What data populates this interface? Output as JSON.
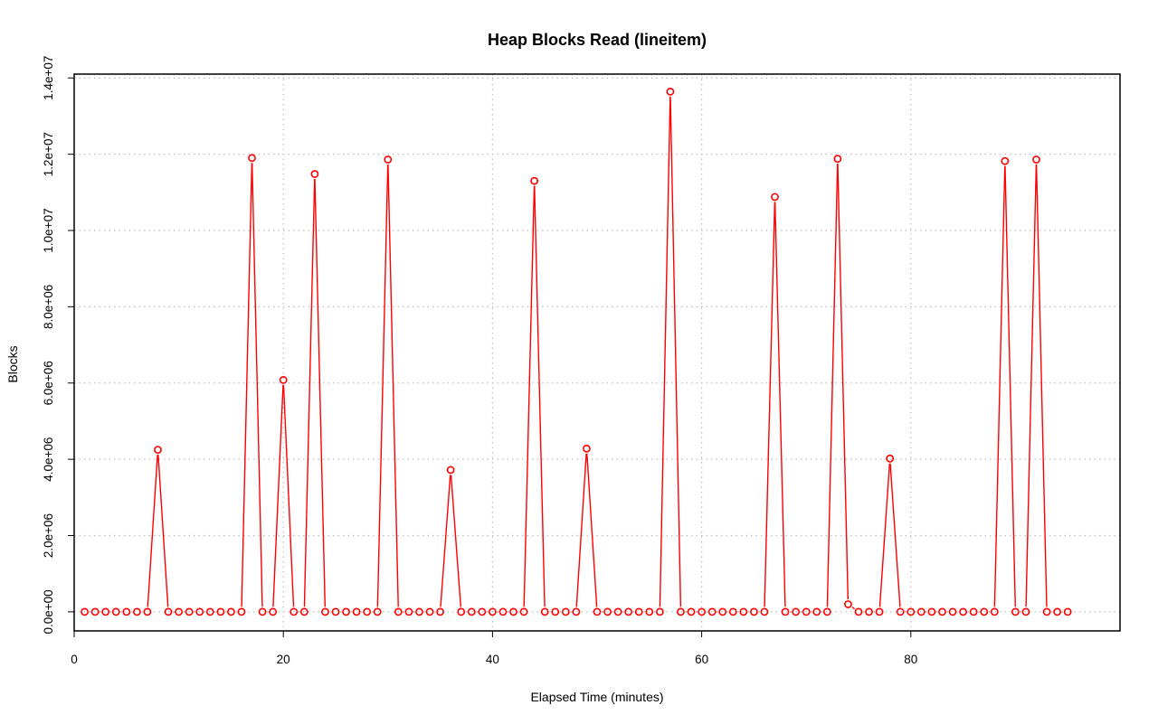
{
  "chart_data": {
    "type": "line",
    "title": "Heap Blocks Read (lineitem)",
    "xlabel": "Elapsed Time (minutes)",
    "ylabel": "Blocks",
    "xlim": [
      0,
      100
    ],
    "ylim": [
      -500000,
      14100000
    ],
    "x_ticks": [
      0,
      20,
      40,
      60,
      80
    ],
    "x_tick_labels": [
      "0",
      "20",
      "40",
      "60",
      "80"
    ],
    "y_ticks": [
      0,
      2000000,
      4000000,
      6000000,
      8000000,
      10000000,
      12000000,
      14000000
    ],
    "y_tick_labels": [
      "0.0e+00",
      "2.0e+06",
      "4.0e+06",
      "6.0e+06",
      "8.0e+06",
      "1.0e+07",
      "1.2e+07",
      "1.4e+07"
    ],
    "grid": true,
    "series": [
      {
        "color": "#ff0000",
        "marker": "open-circle",
        "x": [
          1,
          2,
          3,
          4,
          5,
          6,
          7,
          8,
          9,
          10,
          11,
          12,
          13,
          14,
          15,
          16,
          17,
          18,
          19,
          20,
          21,
          22,
          23,
          24,
          25,
          26,
          27,
          28,
          29,
          30,
          31,
          32,
          33,
          34,
          35,
          36,
          37,
          38,
          39,
          40,
          41,
          42,
          43,
          44,
          45,
          46,
          47,
          48,
          49,
          50,
          51,
          52,
          53,
          54,
          55,
          56,
          57,
          58,
          59,
          60,
          61,
          62,
          63,
          64,
          65,
          66,
          67,
          68,
          69,
          70,
          71,
          72,
          73,
          74,
          75,
          76,
          77,
          78,
          79,
          80,
          81,
          82,
          83,
          84,
          85,
          86,
          87,
          88,
          89,
          90,
          91,
          92,
          93,
          94,
          95
        ],
        "y": [
          0,
          0,
          0,
          0,
          0,
          0,
          0,
          4250000,
          0,
          0,
          0,
          0,
          0,
          0,
          0,
          0,
          11900000,
          0,
          0,
          6080000,
          0,
          0,
          11480000,
          0,
          0,
          0,
          0,
          0,
          0,
          11860000,
          0,
          0,
          0,
          0,
          0,
          3720000,
          0,
          0,
          0,
          0,
          0,
          0,
          0,
          11300000,
          0,
          0,
          0,
          0,
          4280000,
          0,
          0,
          0,
          0,
          0,
          0,
          0,
          13640000,
          0,
          0,
          0,
          0,
          0,
          0,
          0,
          0,
          0,
          10880000,
          0,
          0,
          0,
          0,
          0,
          11880000,
          200000,
          0,
          0,
          0,
          4020000,
          0,
          0,
          0,
          0,
          0,
          0,
          0,
          0,
          0,
          0,
          11820000,
          0,
          0,
          11860000,
          0,
          0,
          0
        ]
      }
    ]
  }
}
